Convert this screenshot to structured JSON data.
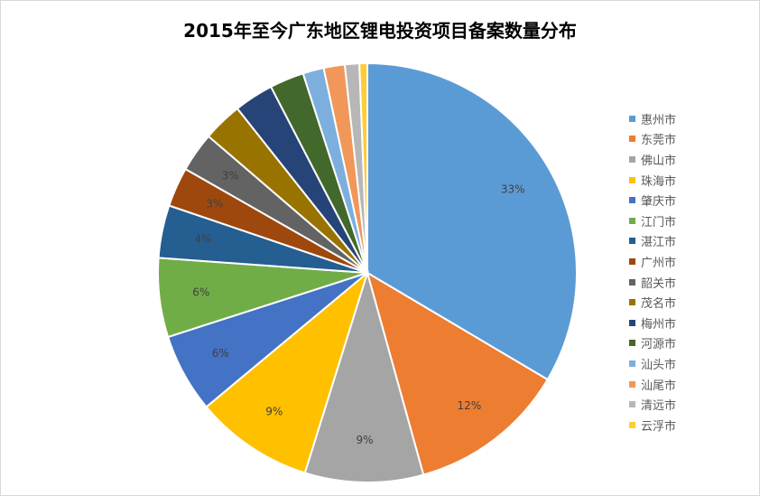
{
  "chart_data": {
    "type": "pie",
    "title": "2015年至今广东地区锂电投资项目备案数量分布",
    "slices": [
      {
        "name": "惠州市",
        "value": 33,
        "label": "33%",
        "color": "#5b9bd5"
      },
      {
        "name": "东莞市",
        "value": 12,
        "label": "12%",
        "color": "#ed7d31"
      },
      {
        "name": "佛山市",
        "value": 9,
        "label": "9%",
        "color": "#a5a5a5"
      },
      {
        "name": "珠海市",
        "value": 9,
        "label": "9%",
        "color": "#ffc000"
      },
      {
        "name": "肇庆市",
        "value": 6,
        "label": "6%",
        "color": "#4472c4"
      },
      {
        "name": "江门市",
        "value": 6,
        "label": "6%",
        "color": "#70ad47"
      },
      {
        "name": "湛江市",
        "value": 4,
        "label": "4%",
        "color": "#255e91"
      },
      {
        "name": "广州市",
        "value": 3,
        "label": "3%",
        "color": "#9e480e"
      },
      {
        "name": "韶关市",
        "value": 3,
        "label": "3%",
        "color": "#636363"
      },
      {
        "name": "茂名市",
        "value": 3,
        "label": "",
        "color": "#997300"
      },
      {
        "name": "梅州市",
        "value": 3,
        "label": "",
        "color": "#264478"
      },
      {
        "name": "河源市",
        "value": 2.6,
        "label": "",
        "color": "#43682b"
      },
      {
        "name": "汕头市",
        "value": 1.6,
        "label": "",
        "color": "#7cafdd"
      },
      {
        "name": "汕尾市",
        "value": 1.6,
        "label": "",
        "color": "#f1975a"
      },
      {
        "name": "清远市",
        "value": 1.1,
        "label": "",
        "color": "#b7b7b7"
      },
      {
        "name": "云浮市",
        "value": 0.6,
        "label": "",
        "color": "#ffcd33"
      }
    ],
    "legend_position": "right"
  }
}
